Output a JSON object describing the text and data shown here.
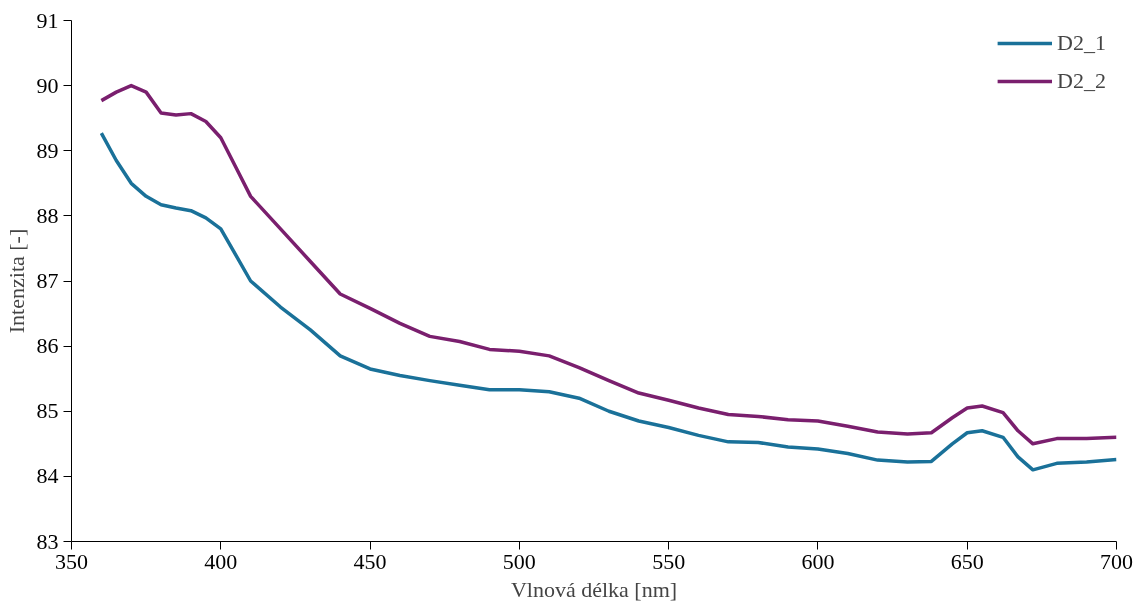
{
  "chart_data": {
    "type": "line",
    "xlabel": "Vlnová délka [nm]",
    "ylabel": "Intenzita [-]",
    "xlim": [
      350,
      700
    ],
    "xticks": [
      350,
      400,
      450,
      500,
      550,
      600,
      650,
      700
    ],
    "ylim": [
      83,
      91
    ],
    "yticks": [
      83,
      84,
      85,
      86,
      87,
      88,
      89,
      90,
      91
    ],
    "grid": false,
    "legend": "top right",
    "line_style": "solid",
    "x": [
      360,
      365,
      370,
      375,
      380,
      385,
      390,
      395,
      400,
      405,
      410,
      420,
      430,
      440,
      450,
      460,
      470,
      480,
      490,
      500,
      510,
      520,
      530,
      540,
      550,
      560,
      570,
      580,
      590,
      600,
      610,
      620,
      630,
      638,
      645,
      650,
      655,
      662,
      667,
      672,
      680,
      690,
      700
    ],
    "series": [
      {
        "name": "D2_1",
        "color": "#1a7199",
        "values": [
          89.27,
          88.85,
          88.5,
          88.3,
          88.17,
          88.12,
          88.08,
          87.97,
          87.8,
          87.4,
          87.0,
          86.6,
          86.25,
          85.85,
          85.65,
          85.55,
          85.47,
          85.4,
          85.33,
          85.33,
          85.3,
          85.2,
          85.0,
          84.85,
          84.75,
          84.63,
          84.53,
          84.52,
          84.45,
          84.42,
          84.35,
          84.25,
          84.22,
          84.23,
          84.5,
          84.67,
          84.7,
          84.6,
          84.3,
          84.1,
          84.2,
          84.22,
          84.26
        ]
      },
      {
        "name": "D2_2",
        "color": "#7a1f6e",
        "values": [
          89.77,
          89.9,
          90.0,
          89.9,
          89.58,
          89.55,
          89.57,
          89.45,
          89.2,
          88.75,
          88.3,
          87.8,
          87.3,
          86.8,
          86.58,
          86.35,
          86.15,
          86.07,
          85.95,
          85.92,
          85.85,
          85.67,
          85.47,
          85.28,
          85.17,
          85.05,
          84.95,
          84.92,
          84.87,
          84.85,
          84.77,
          84.68,
          84.65,
          84.67,
          84.9,
          85.05,
          85.08,
          84.98,
          84.7,
          84.5,
          84.58,
          84.58,
          84.6
        ]
      }
    ]
  }
}
